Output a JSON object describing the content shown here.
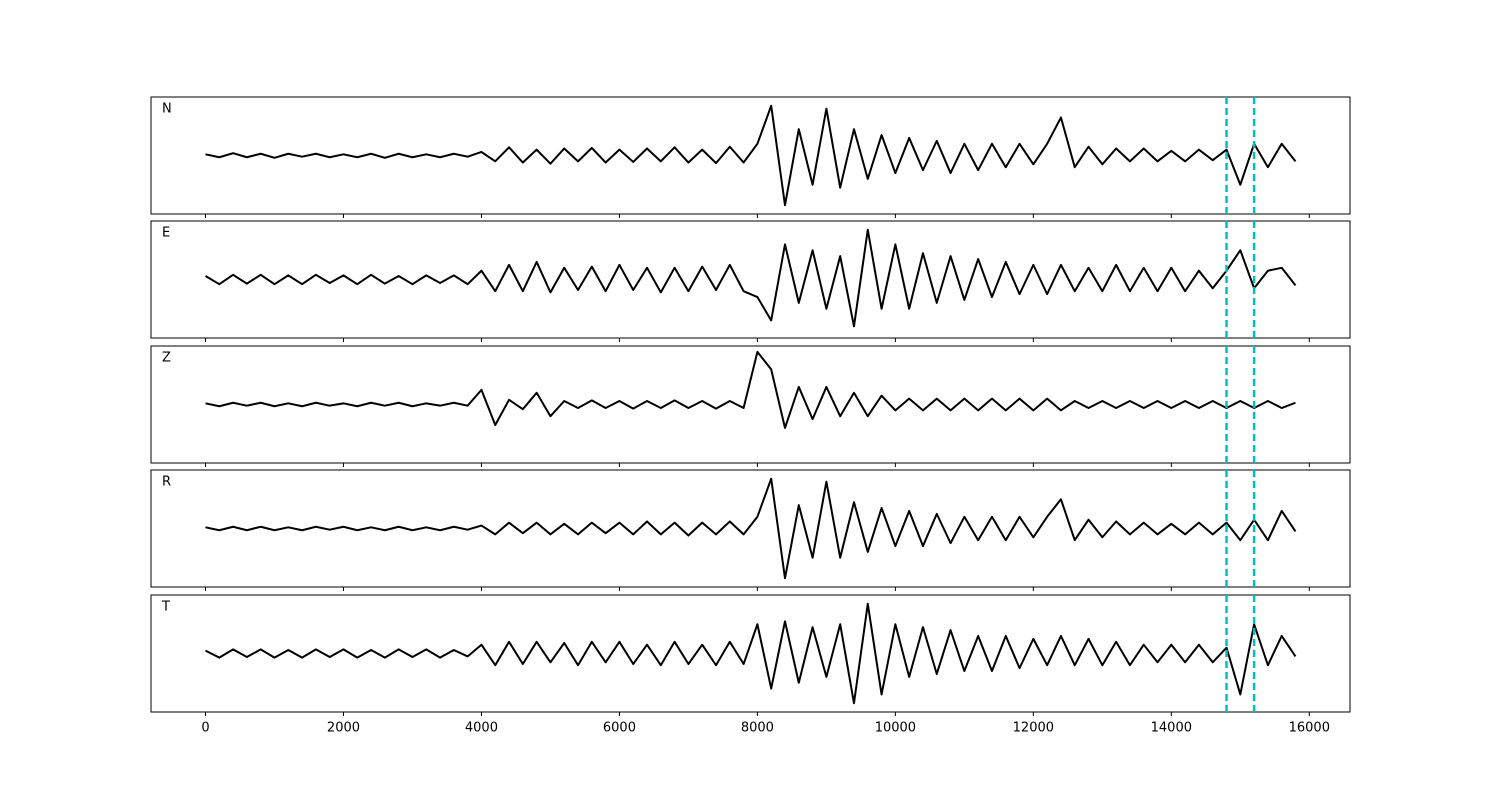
{
  "chart_data": {
    "type": "line",
    "x": [
      0,
      200,
      400,
      600,
      800,
      1000,
      1200,
      1400,
      1600,
      1800,
      2000,
      2200,
      2400,
      2600,
      2800,
      3000,
      3200,
      3400,
      3600,
      3800,
      4000,
      4200,
      4400,
      4600,
      4800,
      5000,
      5200,
      5400,
      5600,
      5800,
      6000,
      6200,
      6400,
      6600,
      6800,
      7000,
      7200,
      7400,
      7600,
      7800,
      8000,
      8200,
      8400,
      8600,
      8800,
      9000,
      9200,
      9400,
      9600,
      9800,
      10000,
      10200,
      10400,
      10600,
      10800,
      11000,
      11200,
      11400,
      11600,
      11800,
      12000,
      12200,
      12400,
      12600,
      12800,
      13000,
      13200,
      13400,
      13600,
      13800,
      14000,
      14200,
      14400,
      14600,
      14800,
      15000,
      15200,
      15400,
      15600,
      15800
    ],
    "xlim": [
      -790,
      16590
    ],
    "xticks": [
      0,
      2000,
      4000,
      6000,
      8000,
      10000,
      12000,
      14000,
      16000
    ],
    "ylim": [
      -1,
      1
    ],
    "line_color": "#000000",
    "vlines": [
      14800,
      15200
    ],
    "vline_color": "#00bfbf",
    "series": [
      {
        "name": "N",
        "values": [
          0.02,
          -0.03,
          0.04,
          -0.03,
          0.03,
          -0.04,
          0.03,
          -0.02,
          0.03,
          -0.03,
          0.02,
          -0.03,
          0.03,
          -0.04,
          0.03,
          -0.03,
          0.02,
          -0.03,
          0.03,
          -0.02,
          0.06,
          -0.1,
          0.14,
          -0.12,
          0.1,
          -0.14,
          0.12,
          -0.1,
          0.13,
          -0.12,
          0.1,
          -0.11,
          0.12,
          -0.1,
          0.14,
          -0.12,
          0.1,
          -0.13,
          0.15,
          -0.12,
          0.2,
          0.85,
          -0.85,
          0.45,
          -0.5,
          0.8,
          -0.55,
          0.45,
          -0.4,
          0.35,
          -0.3,
          0.3,
          -0.25,
          0.25,
          -0.3,
          0.2,
          -0.25,
          0.2,
          -0.2,
          0.2,
          -0.15,
          0.2,
          0.65,
          -0.2,
          0.15,
          -0.15,
          0.12,
          -0.1,
          0.12,
          -0.1,
          0.08,
          -0.1,
          0.1,
          -0.08,
          0.1,
          -0.5,
          0.2,
          -0.2,
          0.2,
          -0.1
        ]
      },
      {
        "name": "E",
        "values": [
          0.06,
          -0.08,
          0.08,
          -0.07,
          0.08,
          -0.08,
          0.07,
          -0.08,
          0.08,
          -0.06,
          0.07,
          -0.08,
          0.08,
          -0.07,
          0.06,
          -0.08,
          0.07,
          -0.06,
          0.07,
          -0.08,
          0.15,
          -0.2,
          0.25,
          -0.2,
          0.3,
          -0.22,
          0.2,
          -0.18,
          0.22,
          -0.2,
          0.25,
          -0.18,
          0.2,
          -0.22,
          0.2,
          -0.2,
          0.22,
          -0.18,
          0.25,
          -0.2,
          -0.3,
          -0.7,
          0.6,
          -0.4,
          0.5,
          -0.5,
          0.4,
          -0.8,
          0.85,
          -0.5,
          0.6,
          -0.5,
          0.45,
          -0.4,
          0.4,
          -0.35,
          0.35,
          -0.3,
          0.3,
          -0.25,
          0.25,
          -0.25,
          0.25,
          -0.2,
          0.2,
          -0.2,
          0.25,
          -0.2,
          0.2,
          -0.2,
          0.2,
          -0.2,
          0.15,
          -0.15,
          0.15,
          0.5,
          -0.15,
          0.15,
          0.2,
          -0.1
        ]
      },
      {
        "name": "Z",
        "values": [
          0.02,
          -0.03,
          0.03,
          -0.02,
          0.03,
          -0.03,
          0.02,
          -0.03,
          0.03,
          -0.02,
          0.02,
          -0.03,
          0.03,
          -0.02,
          0.03,
          -0.03,
          0.02,
          -0.02,
          0.03,
          -0.02,
          0.25,
          -0.35,
          0.08,
          -0.08,
          0.2,
          -0.2,
          0.06,
          -0.06,
          0.07,
          -0.06,
          0.06,
          -0.07,
          0.06,
          -0.06,
          0.07,
          -0.06,
          0.06,
          -0.07,
          0.06,
          -0.06,
          0.9,
          0.6,
          -0.4,
          0.3,
          -0.25,
          0.3,
          -0.2,
          0.2,
          -0.2,
          0.15,
          -0.1,
          0.1,
          -0.1,
          0.1,
          -0.1,
          0.1,
          -0.1,
          0.1,
          -0.1,
          0.1,
          -0.1,
          0.1,
          -0.1,
          0.06,
          -0.06,
          0.06,
          -0.06,
          0.06,
          -0.06,
          0.06,
          -0.06,
          0.06,
          -0.06,
          0.06,
          -0.06,
          0.06,
          -0.06,
          0.06,
          -0.06,
          0.03
        ]
      },
      {
        "name": "R",
        "values": [
          0.02,
          -0.03,
          0.03,
          -0.03,
          0.03,
          -0.03,
          0.02,
          -0.03,
          0.03,
          -0.02,
          0.03,
          -0.03,
          0.02,
          -0.03,
          0.03,
          -0.03,
          0.02,
          -0.03,
          0.03,
          -0.02,
          0.05,
          -0.1,
          0.1,
          -0.08,
          0.1,
          -0.1,
          0.08,
          -0.1,
          0.1,
          -0.08,
          0.1,
          -0.1,
          0.12,
          -0.1,
          0.1,
          -0.12,
          0.1,
          -0.1,
          0.12,
          -0.1,
          0.2,
          0.85,
          -0.85,
          0.4,
          -0.5,
          0.8,
          -0.5,
          0.45,
          -0.4,
          0.35,
          -0.3,
          0.3,
          -0.3,
          0.25,
          -0.25,
          0.2,
          -0.2,
          0.2,
          -0.2,
          0.2,
          -0.15,
          0.2,
          0.5,
          -0.2,
          0.15,
          -0.15,
          0.12,
          -0.1,
          0.1,
          -0.1,
          0.08,
          -0.1,
          0.1,
          -0.1,
          0.1,
          -0.2,
          0.15,
          -0.2,
          0.3,
          -0.05
        ]
      },
      {
        "name": "T",
        "values": [
          0.05,
          -0.07,
          0.07,
          -0.06,
          0.07,
          -0.07,
          0.06,
          -0.07,
          0.07,
          -0.06,
          0.07,
          -0.07,
          0.06,
          -0.07,
          0.07,
          -0.06,
          0.07,
          -0.07,
          0.06,
          -0.05,
          0.15,
          -0.2,
          0.2,
          -0.18,
          0.2,
          -0.15,
          0.18,
          -0.2,
          0.2,
          -0.15,
          0.2,
          -0.18,
          0.15,
          -0.2,
          0.2,
          -0.18,
          0.15,
          -0.2,
          0.2,
          -0.18,
          0.5,
          -0.6,
          0.55,
          -0.5,
          0.45,
          -0.4,
          0.5,
          -0.85,
          0.85,
          -0.7,
          0.5,
          -0.4,
          0.45,
          -0.35,
          0.4,
          -0.3,
          0.3,
          -0.3,
          0.3,
          -0.25,
          0.25,
          -0.2,
          0.3,
          -0.2,
          0.25,
          -0.2,
          0.2,
          -0.2,
          0.15,
          -0.15,
          0.15,
          -0.15,
          0.15,
          -0.15,
          0.1,
          -0.7,
          0.5,
          -0.2,
          0.3,
          -0.05
        ]
      }
    ]
  }
}
